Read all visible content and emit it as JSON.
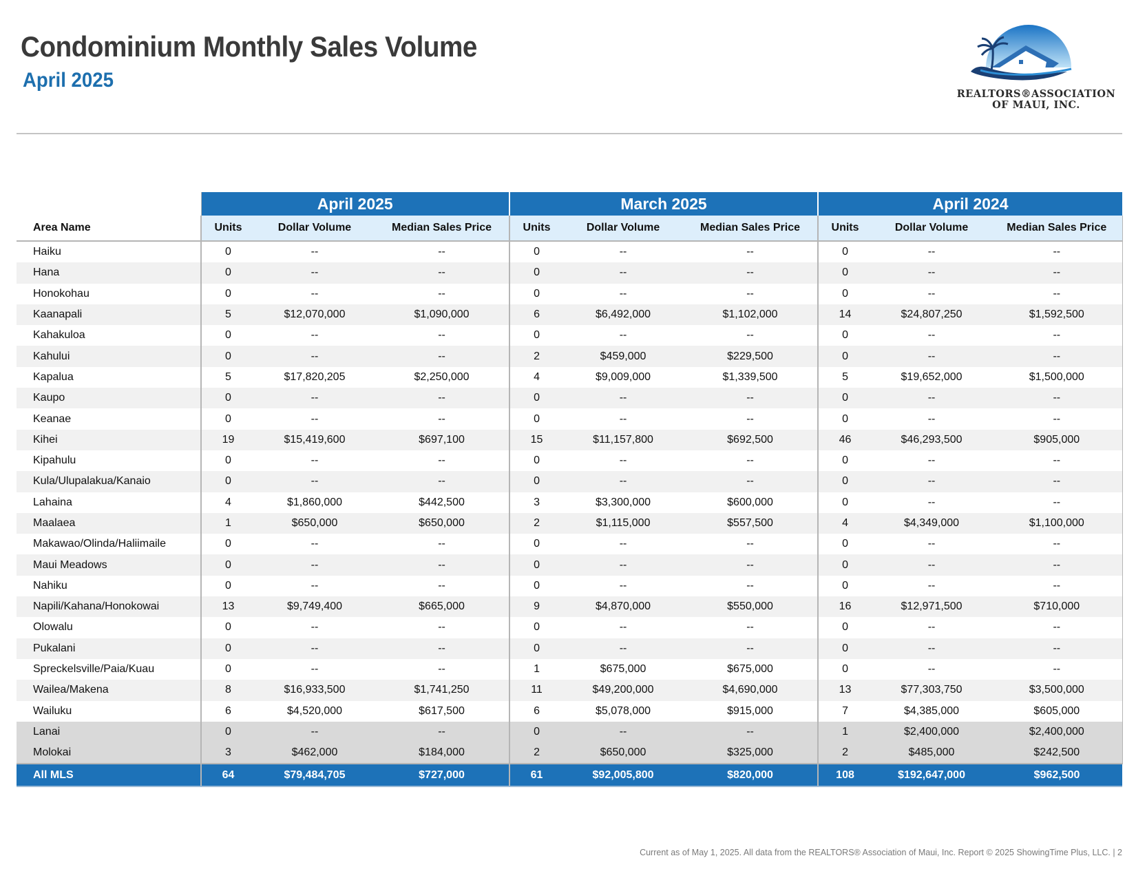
{
  "header": {
    "title": "Condominium Monthly Sales Volume",
    "subtitle": "April 2025",
    "logo": {
      "line1": "REALTORS®ASSOCIATION",
      "line2": "OF MAUI, INC.",
      "icon": "palm-tree-house-logo"
    }
  },
  "table": {
    "area_header": "Area Name",
    "groups": [
      "April 2025",
      "March 2025",
      "April 2024"
    ],
    "columns": [
      "Units",
      "Dollar Volume",
      "Median Sales Price"
    ],
    "rows": [
      {
        "area": "Haiku",
        "v": [
          "0",
          "--",
          "--",
          "0",
          "--",
          "--",
          "0",
          "--",
          "--"
        ]
      },
      {
        "area": "Hana",
        "v": [
          "0",
          "--",
          "--",
          "0",
          "--",
          "--",
          "0",
          "--",
          "--"
        ]
      },
      {
        "area": "Honokohau",
        "v": [
          "0",
          "--",
          "--",
          "0",
          "--",
          "--",
          "0",
          "--",
          "--"
        ]
      },
      {
        "area": "Kaanapali",
        "v": [
          "5",
          "$12,070,000",
          "$1,090,000",
          "6",
          "$6,492,000",
          "$1,102,000",
          "14",
          "$24,807,250",
          "$1,592,500"
        ]
      },
      {
        "area": "Kahakuloa",
        "v": [
          "0",
          "--",
          "--",
          "0",
          "--",
          "--",
          "0",
          "--",
          "--"
        ]
      },
      {
        "area": "Kahului",
        "v": [
          "0",
          "--",
          "--",
          "2",
          "$459,000",
          "$229,500",
          "0",
          "--",
          "--"
        ]
      },
      {
        "area": "Kapalua",
        "v": [
          "5",
          "$17,820,205",
          "$2,250,000",
          "4",
          "$9,009,000",
          "$1,339,500",
          "5",
          "$19,652,000",
          "$1,500,000"
        ]
      },
      {
        "area": "Kaupo",
        "v": [
          "0",
          "--",
          "--",
          "0",
          "--",
          "--",
          "0",
          "--",
          "--"
        ]
      },
      {
        "area": "Keanae",
        "v": [
          "0",
          "--",
          "--",
          "0",
          "--",
          "--",
          "0",
          "--",
          "--"
        ]
      },
      {
        "area": "Kihei",
        "v": [
          "19",
          "$15,419,600",
          "$697,100",
          "15",
          "$11,157,800",
          "$692,500",
          "46",
          "$46,293,500",
          "$905,000"
        ]
      },
      {
        "area": "Kipahulu",
        "v": [
          "0",
          "--",
          "--",
          "0",
          "--",
          "--",
          "0",
          "--",
          "--"
        ]
      },
      {
        "area": "Kula/Ulupalakua/Kanaio",
        "v": [
          "0",
          "--",
          "--",
          "0",
          "--",
          "--",
          "0",
          "--",
          "--"
        ]
      },
      {
        "area": "Lahaina",
        "v": [
          "4",
          "$1,860,000",
          "$442,500",
          "3",
          "$3,300,000",
          "$600,000",
          "0",
          "--",
          "--"
        ]
      },
      {
        "area": "Maalaea",
        "v": [
          "1",
          "$650,000",
          "$650,000",
          "2",
          "$1,115,000",
          "$557,500",
          "4",
          "$4,349,000",
          "$1,100,000"
        ]
      },
      {
        "area": "Makawao/Olinda/Haliimaile",
        "v": [
          "0",
          "--",
          "--",
          "0",
          "--",
          "--",
          "0",
          "--",
          "--"
        ]
      },
      {
        "area": "Maui Meadows",
        "v": [
          "0",
          "--",
          "--",
          "0",
          "--",
          "--",
          "0",
          "--",
          "--"
        ]
      },
      {
        "area": "Nahiku",
        "v": [
          "0",
          "--",
          "--",
          "0",
          "--",
          "--",
          "0",
          "--",
          "--"
        ]
      },
      {
        "area": "Napili/Kahana/Honokowai",
        "v": [
          "13",
          "$9,749,400",
          "$665,000",
          "9",
          "$4,870,000",
          "$550,000",
          "16",
          "$12,971,500",
          "$710,000"
        ]
      },
      {
        "area": "Olowalu",
        "v": [
          "0",
          "--",
          "--",
          "0",
          "--",
          "--",
          "0",
          "--",
          "--"
        ]
      },
      {
        "area": "Pukalani",
        "v": [
          "0",
          "--",
          "--",
          "0",
          "--",
          "--",
          "0",
          "--",
          "--"
        ]
      },
      {
        "area": "Spreckelsville/Paia/Kuau",
        "v": [
          "0",
          "--",
          "--",
          "1",
          "$675,000",
          "$675,000",
          "0",
          "--",
          "--"
        ]
      },
      {
        "area": "Wailea/Makena",
        "v": [
          "8",
          "$16,933,500",
          "$1,741,250",
          "11",
          "$49,200,000",
          "$4,690,000",
          "13",
          "$77,303,750",
          "$3,500,000"
        ]
      },
      {
        "area": "Wailuku",
        "v": [
          "6",
          "$4,520,000",
          "$617,500",
          "6",
          "$5,078,000",
          "$915,000",
          "7",
          "$4,385,000",
          "$605,000"
        ]
      },
      {
        "area": "Lanai",
        "v": [
          "0",
          "--",
          "--",
          "0",
          "--",
          "--",
          "1",
          "$2,400,000",
          "$2,400,000"
        ],
        "island": true
      },
      {
        "area": "Molokai",
        "v": [
          "3",
          "$462,000",
          "$184,000",
          "2",
          "$650,000",
          "$325,000",
          "2",
          "$485,000",
          "$242,500"
        ],
        "island": true
      }
    ],
    "total": {
      "area": "All MLS",
      "v": [
        "64",
        "$79,484,705",
        "$727,000",
        "61",
        "$92,005,800",
        "$820,000",
        "108",
        "$192,647,000",
        "$962,500"
      ]
    }
  },
  "footer": "Current as of May 1, 2025. All data from the REALTORS® Association of Maui, Inc. Report © 2025 ShowingTime Plus, LLC.  |  2",
  "colors": {
    "accent": "#1d72b8",
    "subheader": "#ddeefb",
    "title": "#3a3a3a",
    "subtitle": "#1d6fae"
  }
}
